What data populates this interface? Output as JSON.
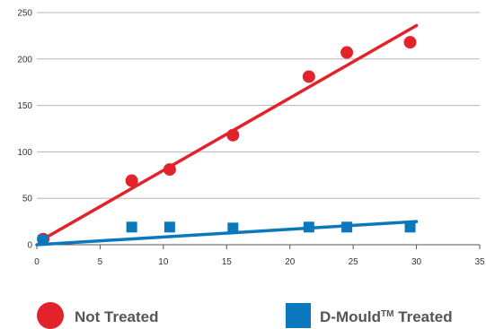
{
  "chart_data": {
    "type": "scatter",
    "title": "",
    "xlabel": "",
    "ylabel": "",
    "xlim": [
      0,
      35
    ],
    "ylim": [
      0,
      250
    ],
    "x_ticks": [
      0,
      5,
      10,
      15,
      20,
      25,
      30,
      35
    ],
    "y_ticks": [
      0,
      50,
      100,
      150,
      200,
      250
    ],
    "grid": "horizontal",
    "legend_position": "bottom",
    "series": [
      {
        "name": "Not Treated",
        "marker": "circle",
        "color": "#e3232b",
        "points": [
          {
            "x": 0.5,
            "y": 6
          },
          {
            "x": 7.5,
            "y": 69
          },
          {
            "x": 10.5,
            "y": 81
          },
          {
            "x": 15.5,
            "y": 118
          },
          {
            "x": 21.5,
            "y": 181
          },
          {
            "x": 24.5,
            "y": 207
          },
          {
            "x": 29.5,
            "y": 218
          }
        ],
        "trendline": [
          {
            "x": 0.5,
            "y": 6
          },
          {
            "x": 30,
            "y": 236
          }
        ]
      },
      {
        "name": "D-Mould",
        "name_suffix": "TM",
        "name_tail": " Treated",
        "marker": "square",
        "color": "#0b77bd",
        "points": [
          {
            "x": 0.5,
            "y": 5
          },
          {
            "x": 7.5,
            "y": 19
          },
          {
            "x": 10.5,
            "y": 19
          },
          {
            "x": 15.5,
            "y": 18
          },
          {
            "x": 21.5,
            "y": 19
          },
          {
            "x": 24.5,
            "y": 19
          },
          {
            "x": 29.5,
            "y": 19
          }
        ],
        "trendline": [
          {
            "x": 0,
            "y": 0
          },
          {
            "x": 30,
            "y": 25
          }
        ]
      }
    ]
  }
}
